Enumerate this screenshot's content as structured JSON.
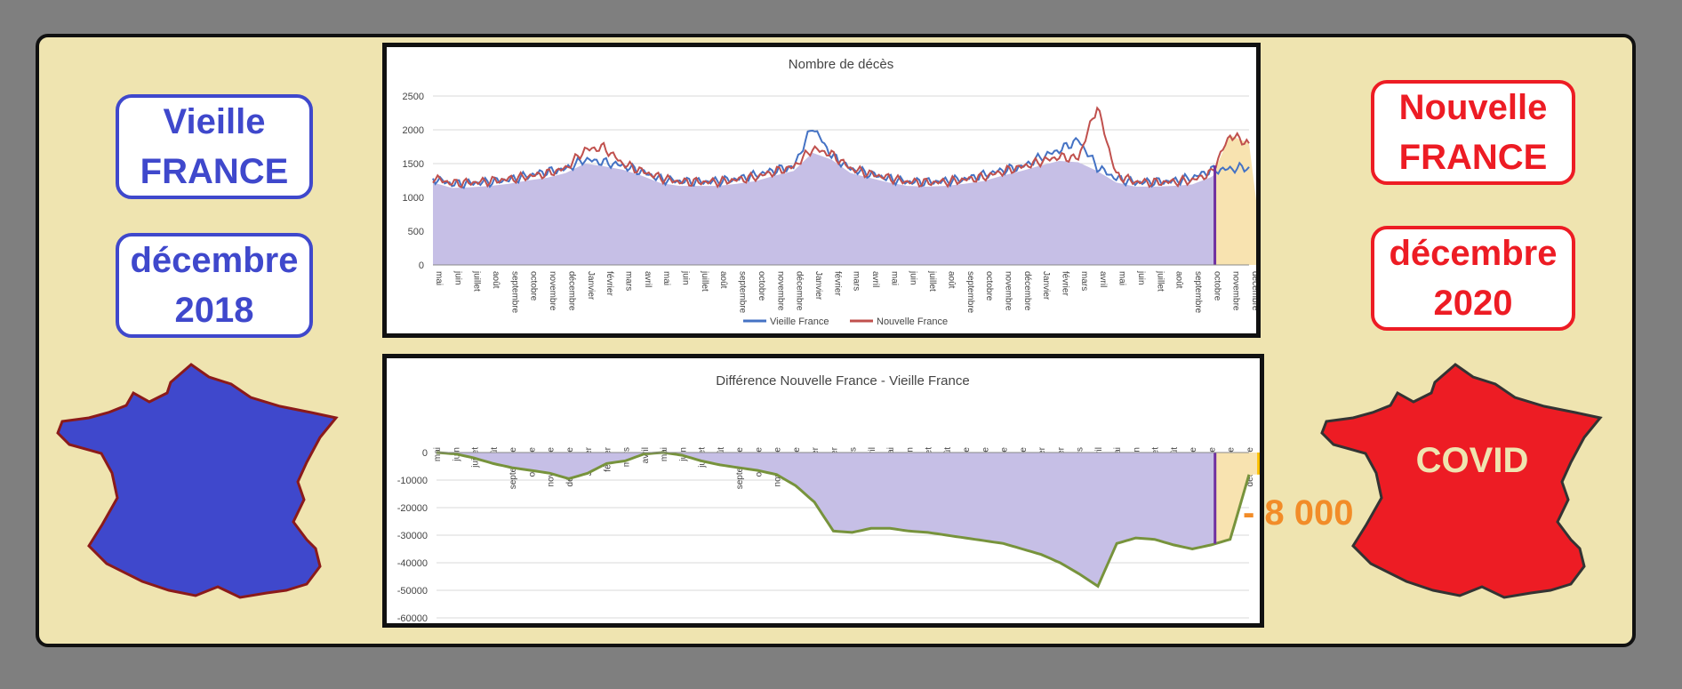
{
  "left": {
    "line1": "Vieille",
    "line2": "FRANCE",
    "date_month": "décembre",
    "date_year": "2018",
    "map_color": "#3f48cc"
  },
  "right": {
    "line1": "Nouvelle",
    "line2": "FRANCE",
    "date_month": "décembre",
    "date_year": "2020",
    "map_color": "#ed1c24",
    "map_label": "COVID"
  },
  "annotation": "- 8 000",
  "chart_data": [
    {
      "type": "line",
      "title": "Nombre de décès",
      "ylim": [
        0,
        2500
      ],
      "yticks": [
        "0",
        "500",
        "1000",
        "1500",
        "2000",
        "2500"
      ],
      "months": [
        "mai",
        "juin",
        "juillet",
        "août",
        "septembre",
        "octobre",
        "novembre",
        "décembre",
        "Janvier",
        "février",
        "mars",
        "avril",
        "mai",
        "juin",
        "juillet",
        "août",
        "septembre",
        "octobre",
        "novembre",
        "décembre",
        "Janvier",
        "février",
        "mars",
        "avril",
        "mai",
        "juin",
        "juillet",
        "août",
        "septembre",
        "octobre",
        "novembre",
        "décembre",
        "Janvier",
        "février",
        "mars",
        "avril",
        "mai",
        "juin",
        "juillet",
        "août",
        "septembre",
        "octobre",
        "novembre",
        "décembre"
      ],
      "series": [
        {
          "name": "Vieille France",
          "color": "#4472c4",
          "values": [
            1280,
            1200,
            1210,
            1230,
            1260,
            1320,
            1380,
            1420,
            1560,
            1520,
            1470,
            1380,
            1270,
            1240,
            1230,
            1240,
            1270,
            1330,
            1400,
            1450,
            2050,
            1620,
            1420,
            1350,
            1280,
            1230,
            1230,
            1240,
            1270,
            1330,
            1400,
            1450,
            1590,
            1700,
            1850,
            1450,
            1280,
            1220,
            1230,
            1240,
            1290,
            1400,
            1420,
            1450
          ]
        },
        {
          "name": "Nouvelle France",
          "color": "#c0504d",
          "values": [
            1290,
            1210,
            1220,
            1240,
            1270,
            1310,
            1350,
            1430,
            1700,
            1740,
            1500,
            1390,
            1290,
            1230,
            1230,
            1230,
            1260,
            1300,
            1380,
            1450,
            1720,
            1640,
            1430,
            1350,
            1290,
            1230,
            1220,
            1230,
            1260,
            1300,
            1380,
            1450,
            1530,
            1600,
            1580,
            2350,
            1330,
            1230,
            1220,
            1230,
            1250,
            1360,
            1920,
            1800
          ]
        }
      ],
      "markers": [
        {
          "month_index": 41.2,
          "color": "#7030a0"
        },
        {
          "month_index": 43.8,
          "color": "#ffc000"
        }
      ],
      "fill_color": "#c6bfe6"
    },
    {
      "type": "area",
      "title": "Différence Nouvelle France - Vieille France",
      "ylim": [
        -60000,
        0
      ],
      "yticks": [
        "0",
        "-10000",
        "-20000",
        "-30000",
        "-40000",
        "-50000",
        "-60000"
      ],
      "months": [
        "mai",
        "juin",
        "juillet",
        "août",
        "septembre",
        "octobre",
        "novembre",
        "décembre",
        "Janvier",
        "février",
        "mars",
        "avril",
        "mai",
        "juin",
        "juillet",
        "août",
        "septembre",
        "octobre",
        "novembre",
        "décembre",
        "Janvier",
        "février",
        "mars",
        "avril",
        "mai",
        "juin",
        "juillet",
        "août",
        "septembre",
        "octobre",
        "novembre",
        "décembre",
        "Janvier",
        "février",
        "mars",
        "avril",
        "mai",
        "juin",
        "juillet",
        "août",
        "septembre",
        "octobre",
        "novembre",
        "décembre"
      ],
      "series": [
        {
          "name": "Différence",
          "color": "#77933c",
          "values": [
            0,
            -500,
            -2000,
            -4000,
            -5500,
            -6500,
            -7500,
            -9500,
            -7500,
            -4000,
            -3000,
            -500,
            0,
            -1000,
            -3000,
            -4500,
            -5500,
            -6500,
            -8000,
            -12000,
            -18000,
            -28500,
            -29000,
            -27500,
            -27500,
            -28500,
            -29000,
            -30000,
            -31000,
            -32000,
            -33000,
            -35000,
            -37000,
            -40000,
            -44000,
            -48500,
            -33000,
            -31000,
            -31500,
            -33500,
            -35000,
            -33500,
            -31500,
            -8000
          ]
        }
      ],
      "markers": [
        {
          "month_index": 41.2,
          "color": "#7030a0"
        },
        {
          "month_index": 43.5,
          "color": "#ffc000"
        }
      ],
      "fill_color": "#c6bfe6"
    }
  ]
}
